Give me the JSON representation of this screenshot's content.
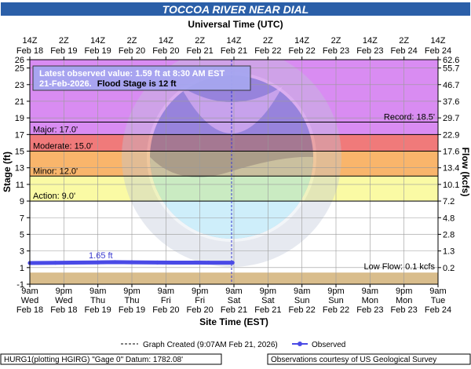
{
  "title": "TOCCOA RIVER NEAR DIAL",
  "top_axis_title": "Universal Time (UTC)",
  "bottom_axis_title": "Site Time (EST)",
  "left_axis_title": "Stage (ft)",
  "right_axis_title": "Flow (kcfs)",
  "annotation": {
    "line1": "Latest observed value: 1.59 ft at 8:30 AM EST",
    "line2_a": "21-Feb-2026.",
    "line2_b": "Flood Stage is 12 ft"
  },
  "legend": {
    "created": "Graph Created (9:07AM Feb 21, 2026)",
    "observed": "Observed"
  },
  "footer": {
    "left": "HURG1(plotting HGIRG) \"Gage 0\" Datum: 1782.08'",
    "right": "Observations courtesy of US Geological Survey"
  },
  "colors": {
    "record_band": "#d98cf2",
    "major_band": "#f07a7a",
    "moderate_band": "#f9b56b",
    "minor_band": "#fafaa4",
    "normal_band": "#ffffff",
    "lowflow_band": "#d9bd8c",
    "observed": "#4a4ae6",
    "title_bg": "#2b5fa8"
  },
  "chart_data": {
    "type": "line",
    "title": "TOCCOA RIVER NEAR DIAL",
    "xlabel": "Site Time (EST)",
    "ylabel": "Stage (ft)",
    "y2label": "Flow (kcfs)",
    "ylim": [
      -1,
      26
    ],
    "y_ticks": [
      -1,
      1,
      3,
      5,
      7,
      9,
      11,
      13,
      15,
      17,
      19,
      21,
      23,
      25,
      26
    ],
    "flow_ticks": [
      {
        "stage": 26,
        "label": "62.6"
      },
      {
        "stage": 25,
        "label": "55.7"
      },
      {
        "stage": 23,
        "label": "46.7"
      },
      {
        "stage": 21,
        "label": "37.6"
      },
      {
        "stage": 19,
        "label": "29.7"
      },
      {
        "stage": 17,
        "label": "22.9"
      },
      {
        "stage": 15,
        "label": "17.6"
      },
      {
        "stage": 13,
        "label": "13.4"
      },
      {
        "stage": 11,
        "label": "10.1"
      },
      {
        "stage": 9,
        "label": "7.2"
      },
      {
        "stage": 7,
        "label": "4.8"
      },
      {
        "stage": 5,
        "label": "2.8"
      },
      {
        "stage": 3,
        "label": "1.3"
      },
      {
        "stage": 1,
        "label": "0.2"
      }
    ],
    "bottom_ticks": [
      {
        "l1": "9am",
        "l2": "Wed",
        "l3": "Feb 18"
      },
      {
        "l1": "9pm",
        "l2": "Wed",
        "l3": "Feb 18"
      },
      {
        "l1": "9am",
        "l2": "Thu",
        "l3": "Feb 19"
      },
      {
        "l1": "9pm",
        "l2": "Thu",
        "l3": "Feb 19"
      },
      {
        "l1": "9am",
        "l2": "Fri",
        "l3": "Feb 20"
      },
      {
        "l1": "9pm",
        "l2": "Fri",
        "l3": "Feb 20"
      },
      {
        "l1": "9am",
        "l2": "Sat",
        "l3": "Feb 21"
      },
      {
        "l1": "9pm",
        "l2": "Sat",
        "l3": "Feb 21"
      },
      {
        "l1": "9am",
        "l2": "Sun",
        "l3": "Feb 22"
      },
      {
        "l1": "9pm",
        "l2": "Sun",
        "l3": "Feb 22"
      },
      {
        "l1": "9am",
        "l2": "Mon",
        "l3": "Feb 23"
      },
      {
        "l1": "9pm",
        "l2": "Mon",
        "l3": "Feb 23"
      },
      {
        "l1": "9am",
        "l2": "Tue",
        "l3": "Feb 24"
      }
    ],
    "top_ticks": [
      {
        "l1": "14Z",
        "l2": "Feb 18"
      },
      {
        "l1": "2Z",
        "l2": "Feb 19"
      },
      {
        "l1": "14Z",
        "l2": "Feb 19"
      },
      {
        "l1": "2Z",
        "l2": "Feb 20"
      },
      {
        "l1": "14Z",
        "l2": "Feb 20"
      },
      {
        "l1": "2Z",
        "l2": "Feb 21"
      },
      {
        "l1": "14Z",
        "l2": "Feb 21"
      },
      {
        "l1": "2Z",
        "l2": "Feb 22"
      },
      {
        "l1": "14Z",
        "l2": "Feb 22"
      },
      {
        "l1": "2Z",
        "l2": "Feb 23"
      },
      {
        "l1": "14Z",
        "l2": "Feb 23"
      },
      {
        "l1": "2Z",
        "l2": "Feb 24"
      },
      {
        "l1": "14Z",
        "l2": "Feb 24"
      }
    ],
    "thresholds": [
      {
        "name": "record",
        "value": 18.5,
        "label": "Record: 18.5'"
      },
      {
        "name": "major",
        "value": 17.0,
        "label": "Major: 17.0'"
      },
      {
        "name": "moderate",
        "value": 15.0,
        "label": "Moderate: 15.0'"
      },
      {
        "name": "minor",
        "value": 12.0,
        "label": "Minor: 12.0'"
      },
      {
        "name": "action",
        "value": 9.0,
        "label": "Action: 9.0'"
      },
      {
        "name": "lowflow",
        "value": 0.4,
        "label": "Low Flow: 0.1 kcfs"
      }
    ],
    "peak_label": "1.65 ft",
    "series": [
      {
        "name": "Observed",
        "x": [
          "2026-02-18 09:00",
          "2026-02-18 18:00",
          "2026-02-19 00:00",
          "2026-02-19 09:00",
          "2026-02-19 15:00",
          "2026-02-19 21:00",
          "2026-02-20 06:00",
          "2026-02-20 12:00",
          "2026-02-20 18:00",
          "2026-02-21 00:00",
          "2026-02-21 08:30"
        ],
        "values": [
          1.55,
          1.57,
          1.6,
          1.62,
          1.65,
          1.63,
          1.61,
          1.6,
          1.6,
          1.59,
          1.59
        ]
      }
    ]
  }
}
